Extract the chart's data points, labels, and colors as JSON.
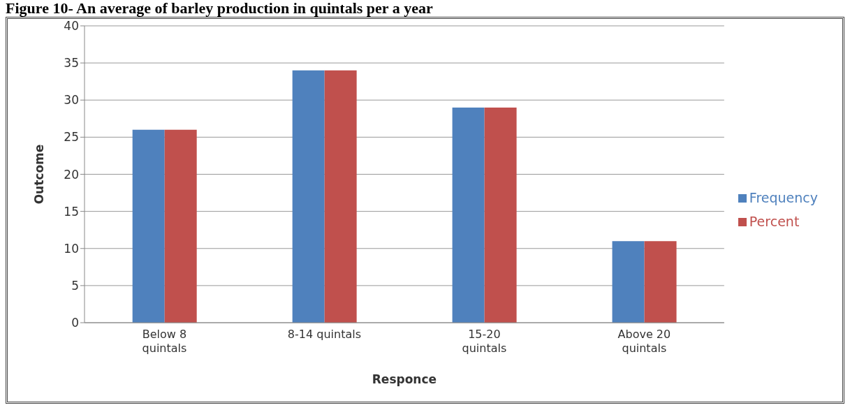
{
  "chart_data": {
    "type": "bar",
    "title": "Figure 10- An average of barley production in quintals per a year",
    "xlabel": "Responce",
    "ylabel": "Outcome",
    "categories": [
      "Below 8 quintals",
      "8-14 quintals",
      "15-20 quintals",
      "Above 20 quintals"
    ],
    "series": [
      {
        "name": "Frequency",
        "color": "#4f81bd",
        "values": [
          26,
          34,
          29,
          11
        ]
      },
      {
        "name": "Percent",
        "color": "#c0504d",
        "values": [
          26,
          34,
          29,
          11
        ]
      }
    ],
    "ylim": [
      0,
      40
    ],
    "yticks": [
      0,
      5,
      10,
      15,
      20,
      25,
      30,
      35,
      40
    ],
    "grid": "y",
    "legend": "right"
  }
}
